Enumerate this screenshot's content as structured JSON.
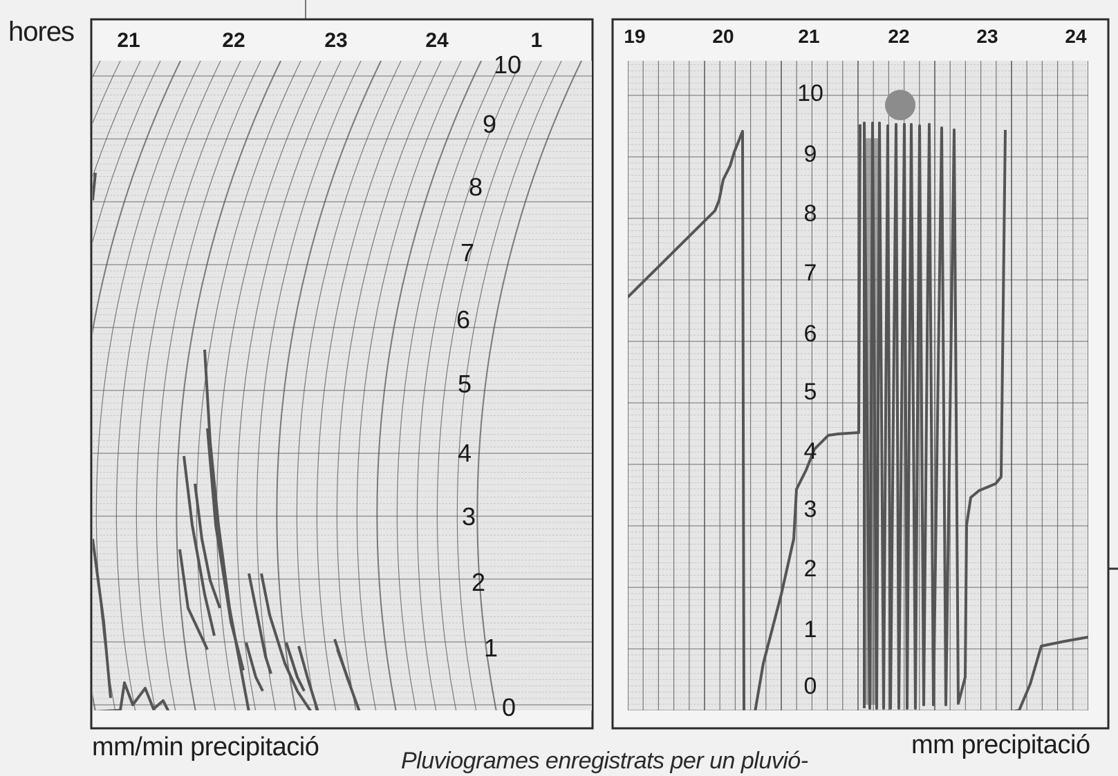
{
  "labels": {
    "hours_label": "hores",
    "left_footer": "mm/min precipitació",
    "right_footer": "mm precipitació",
    "caption": "Pluviogrames enregistrats per un pluvió-"
  },
  "left_chart": {
    "hour_ticks": [
      "21",
      "22",
      "23",
      "24",
      "1"
    ],
    "scale_ticks": [
      "0",
      "1",
      "2",
      "3",
      "4",
      "5",
      "6",
      "7",
      "8",
      "9",
      "10"
    ],
    "unit": "mm/min"
  },
  "right_chart": {
    "hour_ticks": [
      "19",
      "20",
      "21",
      "22",
      "23",
      "24"
    ],
    "scale_ticks": [
      "0",
      "1",
      "2",
      "3",
      "4",
      "5",
      "6",
      "7",
      "8",
      "9",
      "10"
    ],
    "unit": "mm"
  },
  "colors": {
    "background": "#f1f1f1",
    "paper": "#e6e6e6",
    "grid": "#8a8a8a",
    "trace": "#555555",
    "marker": "#8c8c8c",
    "text": "#1a1a1a"
  }
}
